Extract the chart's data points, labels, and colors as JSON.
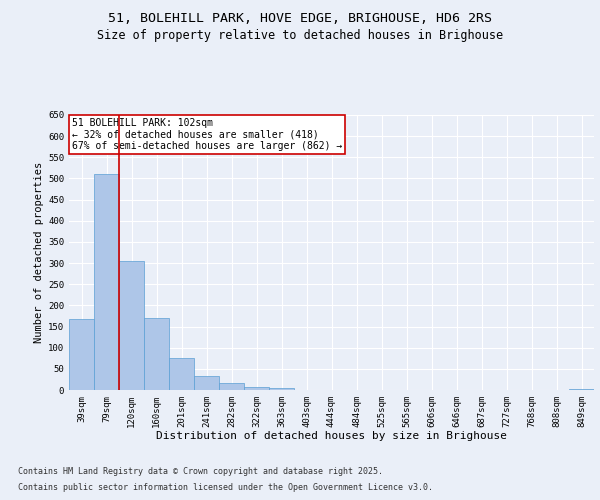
{
  "title1": "51, BOLEHILL PARK, HOVE EDGE, BRIGHOUSE, HD6 2RS",
  "title2": "Size of property relative to detached houses in Brighouse",
  "xlabel": "Distribution of detached houses by size in Brighouse",
  "ylabel": "Number of detached properties",
  "categories": [
    "39sqm",
    "79sqm",
    "120sqm",
    "160sqm",
    "201sqm",
    "241sqm",
    "282sqm",
    "322sqm",
    "363sqm",
    "403sqm",
    "444sqm",
    "484sqm",
    "525sqm",
    "565sqm",
    "606sqm",
    "646sqm",
    "687sqm",
    "727sqm",
    "768sqm",
    "808sqm",
    "849sqm"
  ],
  "values": [
    168,
    510,
    305,
    170,
    75,
    32,
    17,
    8,
    5,
    1,
    0,
    0,
    0,
    0,
    0,
    0,
    0,
    0,
    0,
    0,
    3
  ],
  "bar_color": "#aec6e8",
  "bar_edge_color": "#5a9fd4",
  "vline_color": "#cc0000",
  "annotation_text": "51 BOLEHILL PARK: 102sqm\n← 32% of detached houses are smaller (418)\n67% of semi-detached houses are larger (862) →",
  "annotation_box_color": "#ffffff",
  "annotation_box_edge": "#cc0000",
  "ylim": [
    0,
    650
  ],
  "yticks": [
    0,
    50,
    100,
    150,
    200,
    250,
    300,
    350,
    400,
    450,
    500,
    550,
    600,
    650
  ],
  "bg_color": "#eaeff8",
  "plot_bg_color": "#eaeff8",
  "grid_color": "#ffffff",
  "footer1": "Contains HM Land Registry data © Crown copyright and database right 2025.",
  "footer2": "Contains public sector information licensed under the Open Government Licence v3.0.",
  "title_fontsize": 9.5,
  "subtitle_fontsize": 8.5,
  "tick_fontsize": 6.5,
  "xlabel_fontsize": 8,
  "ylabel_fontsize": 7.5,
  "annotation_fontsize": 7,
  "footer_fontsize": 6
}
